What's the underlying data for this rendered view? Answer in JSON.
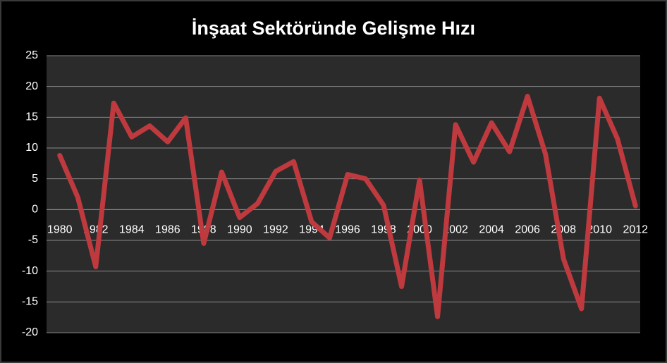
{
  "chart_data": {
    "type": "line",
    "title": "İnşaat Sektöründe Gelişme Hızı",
    "categories": [
      "1980",
      null,
      "1982",
      null,
      "1984",
      null,
      "1986",
      null,
      "1988",
      null,
      "1990",
      null,
      "1992",
      null,
      "1994",
      null,
      "1996",
      null,
      "1998",
      null,
      "2000",
      null,
      "2002",
      null,
      "2004",
      null,
      "2006",
      null,
      "2008",
      null,
      "2010",
      null,
      "2012"
    ],
    "series": [
      {
        "color": "#be3a3e",
        "values": [
          8.8,
          2.0,
          -9.3,
          17.3,
          11.8,
          13.6,
          11.0,
          14.9,
          -5.5,
          6.1,
          -1.3,
          1.0,
          6.2,
          7.8,
          -2.0,
          -4.6,
          5.7,
          5.0,
          0.7,
          -12.5,
          4.8,
          -17.4,
          13.8,
          7.7,
          14.1,
          9.4,
          18.4,
          9.0,
          -8.0,
          -16.1,
          18.1,
          11.5,
          0.6
        ]
      }
    ],
    "ylim": [
      -20,
      25
    ],
    "yticks": [
      -20,
      -15,
      -10,
      -5,
      0,
      5,
      10,
      15,
      20,
      25
    ],
    "grid": true
  }
}
